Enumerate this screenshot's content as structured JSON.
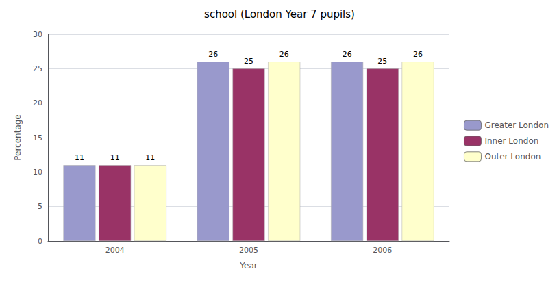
{
  "chart_data": {
    "type": "bar",
    "title": "school (London Year 7 pupils)",
    "x_label": "Year",
    "y_label": "Percentage",
    "categories": [
      "2004",
      "2005",
      "2006"
    ],
    "series": [
      {
        "name": "Greater London",
        "color": "#9999cc",
        "values": [
          11,
          26,
          26
        ]
      },
      {
        "name": "Inner London",
        "color": "#993366",
        "values": [
          11,
          25,
          25
        ]
      },
      {
        "name": "Outer London",
        "color": "#ffffcc",
        "values": [
          11,
          26,
          26
        ]
      }
    ],
    "ylim": [
      0,
      30
    ],
    "yticks": [
      0,
      5,
      10,
      15,
      20,
      25,
      30
    ],
    "grid": true,
    "legend": "right",
    "data_labels": true
  }
}
